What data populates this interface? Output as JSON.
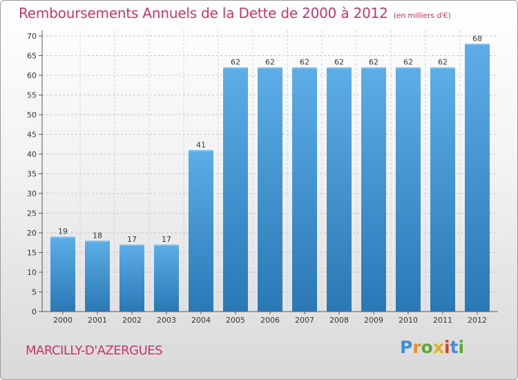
{
  "header": {
    "title": "Remboursements Annuels de la Dette de 2000 à 2012",
    "unit": "(en milliers d'€)"
  },
  "footer": {
    "commune": "MARCILLY-D'AZERGUES",
    "logo": "Proxiti"
  },
  "colors": {
    "accent": "#c8336c",
    "bar_top": "#5dade8",
    "bar_bottom": "#2a78b5"
  },
  "chart_data": {
    "type": "bar",
    "categories": [
      "2000",
      "2001",
      "2002",
      "2003",
      "2004",
      "2005",
      "2006",
      "2007",
      "2008",
      "2009",
      "2010",
      "2011",
      "2012"
    ],
    "values": [
      19,
      18,
      17,
      17,
      41,
      62,
      62,
      62,
      62,
      62,
      62,
      62,
      68
    ],
    "title": "Remboursements Annuels de la Dette de 2000 à 2012",
    "xlabel": "",
    "ylabel": "",
    "ylim": [
      0,
      70
    ],
    "yticks": [
      0,
      5,
      10,
      15,
      20,
      25,
      30,
      35,
      40,
      45,
      50,
      55,
      60,
      65,
      70
    ],
    "grid": true,
    "data_labels": true
  }
}
